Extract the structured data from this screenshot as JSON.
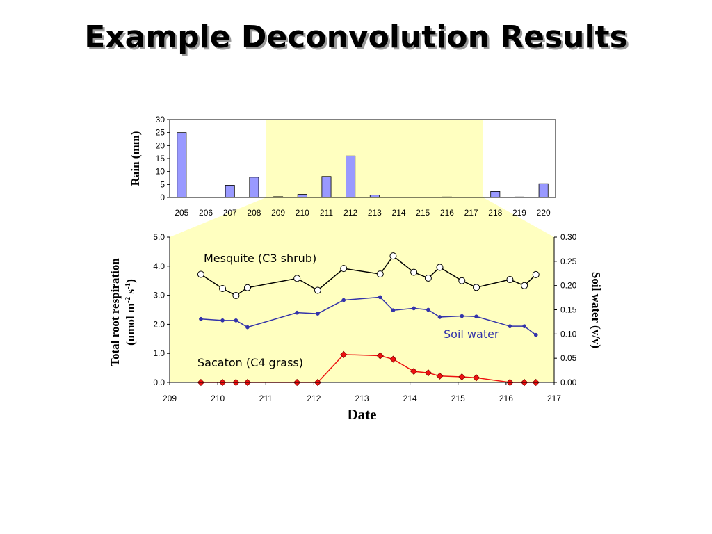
{
  "title": "Example Deconvolution Results",
  "chart_data": [
    {
      "type": "bar",
      "ylabel": "Rain (mm)",
      "xlabel": "",
      "categories": [
        "205",
        "206",
        "207",
        "208",
        "209",
        "210",
        "211",
        "212",
        "213",
        "214",
        "215",
        "216",
        "217",
        "218",
        "219",
        "220"
      ],
      "values": [
        25,
        0,
        4.7,
        7.8,
        0.3,
        1.2,
        8.1,
        16,
        0.9,
        0,
        0,
        0.2,
        0,
        2.3,
        0.2,
        5.3
      ],
      "ylim": [
        0,
        30
      ],
      "yticks": [
        0,
        5,
        10,
        15,
        20,
        25,
        30
      ],
      "highlight_range": [
        209,
        217
      ],
      "colors": {
        "bar": "#9999ff",
        "highlight": "#ffffc0"
      },
      "grid": false
    },
    {
      "type": "line",
      "xlabel": "Date",
      "ylabel": "Total root respiration",
      "ylabel_line2": "(umol m",
      "ylabel_sup1": "-2",
      "ylabel_mid": " s",
      "ylabel_sup2": "-1",
      "ylabel_end": ")",
      "y2label": "Soil water (v/v)",
      "xlim": [
        209,
        217
      ],
      "xticks": [
        209,
        210,
        211,
        212,
        213,
        214,
        215,
        216,
        217
      ],
      "ylim": [
        0,
        5
      ],
      "yticks": [
        "0.0",
        "1.0",
        "2.0",
        "3.0",
        "4.0",
        "5.0"
      ],
      "y2lim": [
        0,
        0.3
      ],
      "y2ticks": [
        "0.00",
        "0.05",
        "0.10",
        "0.15",
        "0.20",
        "0.25",
        "0.30"
      ],
      "background": "#ffffc0",
      "grid": false,
      "series": [
        {
          "name": "Mesquite (C3 shrub)",
          "color": "#000000",
          "marker": "circle",
          "x": [
            209.65,
            210.1,
            210.38,
            210.62,
            211.65,
            212.08,
            212.62,
            213.38,
            213.65,
            214.08,
            214.38,
            214.62,
            215.08,
            215.38,
            216.08,
            216.38,
            216.62
          ],
          "y": [
            3.72,
            3.23,
            2.99,
            3.26,
            3.58,
            3.17,
            3.92,
            3.73,
            4.35,
            3.79,
            3.59,
            3.96,
            3.5,
            3.27,
            3.54,
            3.33,
            3.71
          ]
        },
        {
          "name": "Soil water",
          "axis": "right",
          "color": "#3333aa",
          "marker": "dot",
          "x": [
            209.65,
            210.1,
            210.38,
            210.62,
            211.65,
            212.08,
            212.62,
            213.38,
            213.65,
            214.08,
            214.38,
            214.62,
            215.08,
            215.38,
            216.08,
            216.38,
            216.62
          ],
          "y": [
            0.131,
            0.128,
            0.128,
            0.114,
            0.144,
            0.142,
            0.17,
            0.176,
            0.149,
            0.153,
            0.15,
            0.135,
            0.137,
            0.136,
            0.116,
            0.116,
            0.098
          ]
        },
        {
          "name": "Sacaton (C4 grass)",
          "color": "#ee1111",
          "marker": "diamond",
          "x": [
            209.65,
            210.1,
            210.38,
            210.62,
            211.65,
            212.08,
            212.62,
            213.38,
            213.65,
            214.08,
            214.38,
            214.62,
            215.08,
            215.38,
            216.08,
            216.38,
            216.62
          ],
          "y": [
            0,
            0,
            0,
            0,
            0,
            0,
            0.96,
            0.92,
            0.8,
            0.38,
            0.33,
            0.22,
            0.19,
            0.16,
            0,
            0,
            0
          ]
        }
      ]
    }
  ]
}
